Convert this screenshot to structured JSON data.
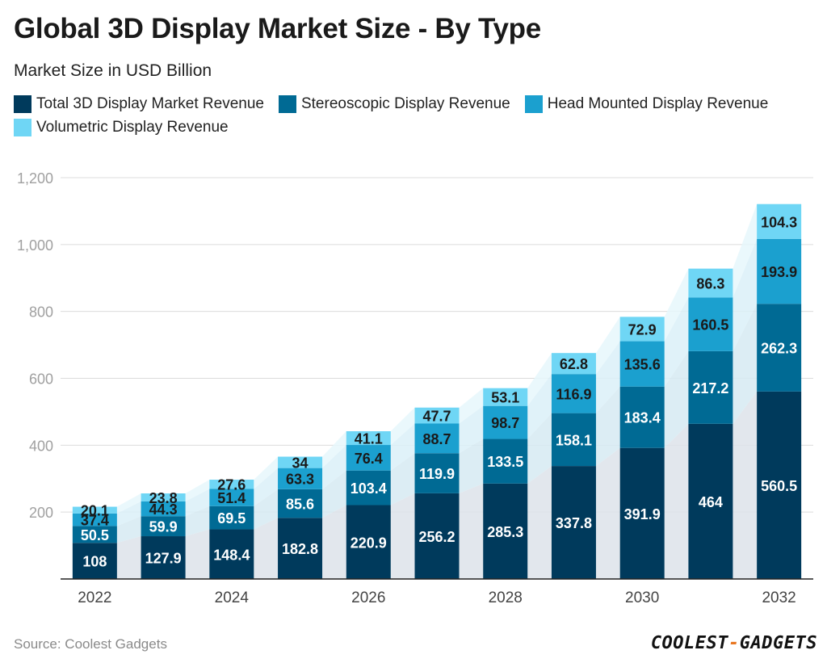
{
  "header": {
    "title": "Global 3D Display Market Size - By Type",
    "subtitle": "Market Size in USD Billion"
  },
  "legend": [
    {
      "label": "Total 3D Display Market Revenue",
      "color": "#003a5c"
    },
    {
      "label": "Stereoscopic Display Revenue",
      "color": "#006a94"
    },
    {
      "label": "Head Mounted Display Revenue",
      "color": "#1ba0cf"
    },
    {
      "label": "Volumetric Display Revenue",
      "color": "#6fd6f5"
    }
  ],
  "chart_data": {
    "type": "bar",
    "stacked": true,
    "categories": [
      "2022",
      "2023",
      "2024",
      "2025",
      "2026",
      "2027",
      "2028",
      "2029",
      "2030",
      "2031",
      "2032"
    ],
    "x_tick_labels": [
      "2022",
      "",
      "2024",
      "",
      "2026",
      "",
      "2028",
      "",
      "2030",
      "",
      "2032"
    ],
    "series": [
      {
        "name": "Total 3D Display Market Revenue",
        "color": "#003a5c",
        "values": [
          108,
          127.9,
          148.4,
          182.8,
          220.9,
          256.2,
          285.3,
          337.8,
          391.9,
          464,
          560.5
        ]
      },
      {
        "name": "Stereoscopic Display Revenue",
        "color": "#006a94",
        "values": [
          50.5,
          59.9,
          69.5,
          85.6,
          103.4,
          119.9,
          133.5,
          158.1,
          183.4,
          217.2,
          262.3
        ]
      },
      {
        "name": "Head Mounted Display Revenue",
        "color": "#1ba0cf",
        "values": [
          37.4,
          44.3,
          51.4,
          63.3,
          76.4,
          88.7,
          98.7,
          116.9,
          135.6,
          160.5,
          193.9
        ]
      },
      {
        "name": "Volumetric Display Revenue",
        "color": "#6fd6f5",
        "values": [
          20.1,
          23.8,
          27.6,
          34,
          41.1,
          47.7,
          53.1,
          62.8,
          72.9,
          86.3,
          104.3
        ]
      }
    ],
    "y_ticks": [
      "200",
      "400",
      "600",
      "800",
      "1,000",
      "1,200"
    ],
    "y_tick_values": [
      200,
      400,
      600,
      800,
      1000,
      1200
    ],
    "ylim": [
      0,
      1200
    ],
    "grid": true,
    "legend_position": "top-left",
    "title": "Global 3D Display Market Size - By Type",
    "ylabel": "Market Size in USD Billion",
    "xlabel": ""
  },
  "footer": {
    "source": "Source: Coolest Gadgets",
    "brand_left": "COOLEST",
    "brand_dash": "-",
    "brand_right": "GADGETS"
  }
}
